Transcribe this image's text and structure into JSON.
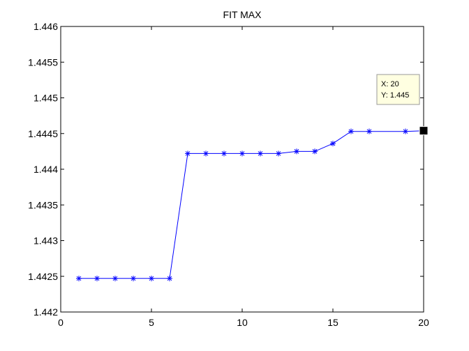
{
  "chart_data": {
    "type": "line",
    "title": "FIT MAX",
    "xlabel": "",
    "ylabel": "",
    "xlim": [
      0,
      20
    ],
    "ylim": [
      1.442,
      1.446
    ],
    "xticks": [
      0,
      5,
      10,
      15,
      20
    ],
    "xtick_labels": [
      "0",
      "5",
      "10",
      "15",
      "20"
    ],
    "yticks": [
      1.442,
      1.4425,
      1.443,
      1.4435,
      1.444,
      1.4445,
      1.445,
      1.4455,
      1.446
    ],
    "ytick_labels": [
      "1.442",
      "1.4425",
      "1.443",
      "1.4435",
      "1.444",
      "1.4445",
      "1.445",
      "1.4455",
      "1.446"
    ],
    "grid": false,
    "series": [
      {
        "x": [
          1,
          2,
          3,
          4,
          5,
          6,
          7,
          8,
          9,
          10,
          11,
          12,
          13,
          14,
          15,
          16,
          17,
          19,
          20
        ],
        "y": [
          1.44247,
          1.44247,
          1.44247,
          1.44247,
          1.44247,
          1.44247,
          1.44422,
          1.44422,
          1.44422,
          1.44422,
          1.44422,
          1.44422,
          1.44425,
          1.44425,
          1.44436,
          1.44453,
          1.44453,
          1.44453,
          1.44454
        ],
        "marker": "asterisk",
        "color": "#0000ff"
      }
    ],
    "datatip": {
      "x_text": "X: 20",
      "y_text": "Y: 1.445",
      "point": [
        20,
        1.44454
      ]
    },
    "colors": {
      "line": "#0000ff",
      "tip_background": "#ffffe1",
      "axes": "#000000"
    }
  }
}
